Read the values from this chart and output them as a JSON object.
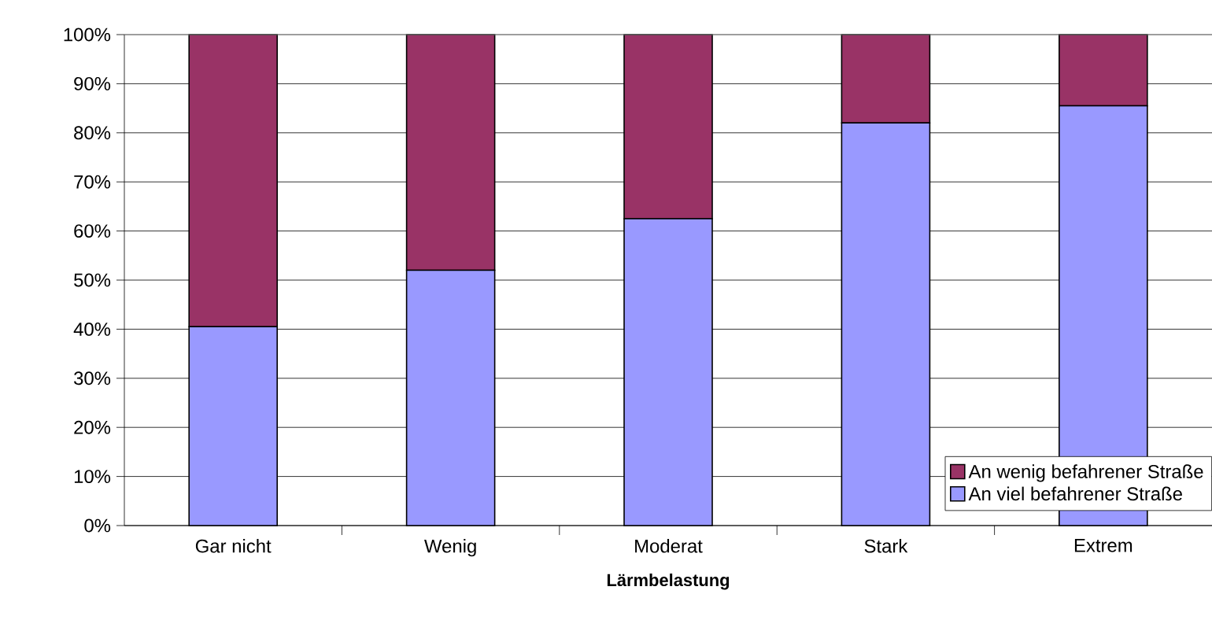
{
  "chart_data": {
    "type": "bar",
    "stacked": true,
    "xlabel": "Lärmbelastung",
    "categories": [
      "Gar nicht",
      "Wenig",
      "Moderat",
      "Stark",
      "Extrem"
    ],
    "series": [
      {
        "name": "An viel befahrener Straße",
        "color": "#9999ff",
        "values": [
          40.5,
          52,
          62.5,
          82,
          85.5
        ]
      },
      {
        "name": "An wenig befahrener Straße",
        "color": "#993366",
        "values": [
          59.5,
          48,
          37.5,
          18,
          14.5
        ]
      }
    ],
    "ylim": [
      0,
      100
    ],
    "yticks": [
      {
        "value": 0,
        "label": "0%"
      },
      {
        "value": 10,
        "label": "10%"
      },
      {
        "value": 20,
        "label": "20%"
      },
      {
        "value": 30,
        "label": "30%"
      },
      {
        "value": 40,
        "label": "40%"
      },
      {
        "value": 50,
        "label": "50%"
      },
      {
        "value": 60,
        "label": "60%"
      },
      {
        "value": 70,
        "label": "70%"
      },
      {
        "value": 80,
        "label": "80%"
      },
      {
        "value": 90,
        "label": "90%"
      },
      {
        "value": 100,
        "label": "100%"
      }
    ],
    "grid": "y",
    "legend": "bottom right"
  }
}
